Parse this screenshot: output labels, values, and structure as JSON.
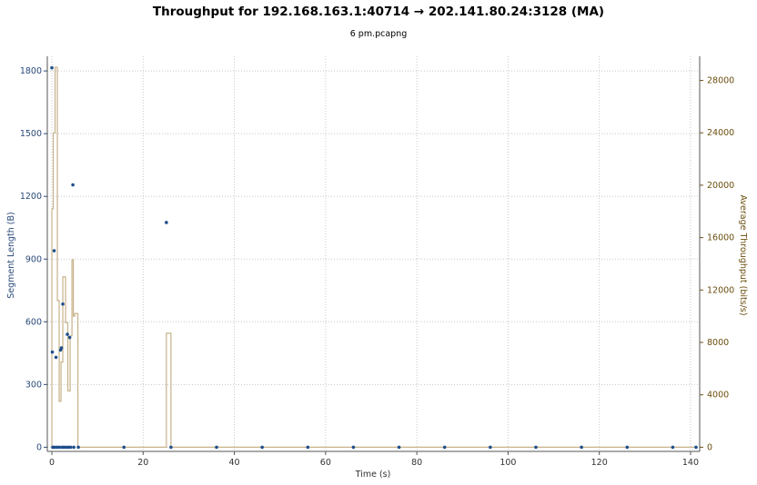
{
  "title": "Throughput for 192.168.163.1:40714 → 202.141.80.24:3128 (MA)",
  "subtitle": "6 pm.pcapng",
  "colors": {
    "segment_points": "#1f4e8c",
    "throughput_line": "#c8b28a",
    "grid": "#c8c8c8",
    "left_axis": "#2a4a7a",
    "right_axis": "#6b4e0e"
  },
  "chart_data": {
    "type": "scatter",
    "title": "Throughput for 192.168.163.1:40714 → 202.141.80.24:3128 (MA)",
    "subtitle": "6 pm.pcapng",
    "xlabel": "Time (s)",
    "ylabel_left": "Segment Length (B)",
    "ylabel_right": "Average Throughput (bits/s)",
    "xlim": [
      -1,
      142
    ],
    "ylim_left": [
      -20,
      1870
    ],
    "ylim_right": [
      -320,
      29840
    ],
    "x_ticks": [
      0,
      20,
      40,
      60,
      80,
      100,
      120,
      140
    ],
    "y_left_ticks": [
      0,
      300,
      600,
      900,
      1200,
      1500,
      1800
    ],
    "y_right_ticks": [
      0,
      4000,
      8000,
      12000,
      16000,
      20000,
      24000,
      28000
    ],
    "grid": true,
    "series": [
      {
        "name": "Segment Length",
        "axis": "left",
        "style": "points",
        "points": [
          [
            0.0,
            1815
          ],
          [
            0.1,
            455
          ],
          [
            0.2,
            0
          ],
          [
            0.5,
            940
          ],
          [
            0.6,
            0
          ],
          [
            0.9,
            430
          ],
          [
            1.1,
            0
          ],
          [
            1.6,
            0
          ],
          [
            1.9,
            465
          ],
          [
            2.1,
            475
          ],
          [
            2.2,
            0
          ],
          [
            2.4,
            685
          ],
          [
            2.6,
            0
          ],
          [
            3.1,
            0
          ],
          [
            3.4,
            540
          ],
          [
            3.6,
            0
          ],
          [
            3.9,
            525
          ],
          [
            4.1,
            0
          ],
          [
            4.6,
            1255
          ],
          [
            4.8,
            0
          ],
          [
            5.8,
            0
          ],
          [
            15.8,
            0
          ],
          [
            25.1,
            1075
          ],
          [
            26.1,
            0
          ],
          [
            36.1,
            0
          ],
          [
            46.1,
            0
          ],
          [
            56.1,
            0
          ],
          [
            66.1,
            0
          ],
          [
            76.1,
            0
          ],
          [
            86.1,
            0
          ],
          [
            96.1,
            0
          ],
          [
            106.1,
            0
          ],
          [
            116.1,
            0
          ],
          [
            126.1,
            0
          ],
          [
            136.1,
            0
          ],
          [
            141.2,
            0
          ]
        ]
      },
      {
        "name": "Average Throughput",
        "axis": "right",
        "style": "step",
        "points": [
          [
            0.0,
            0
          ],
          [
            0.0,
            18200
          ],
          [
            0.3,
            18200
          ],
          [
            0.3,
            24000
          ],
          [
            0.7,
            24000
          ],
          [
            0.7,
            29000
          ],
          [
            1.2,
            29000
          ],
          [
            1.2,
            11200
          ],
          [
            1.6,
            11200
          ],
          [
            1.6,
            3500
          ],
          [
            2.0,
            3500
          ],
          [
            2.0,
            6500
          ],
          [
            2.4,
            6500
          ],
          [
            2.4,
            13000
          ],
          [
            3.0,
            13000
          ],
          [
            3.0,
            9500
          ],
          [
            3.5,
            9500
          ],
          [
            3.5,
            4300
          ],
          [
            4.0,
            4300
          ],
          [
            4.0,
            8500
          ],
          [
            4.4,
            8500
          ],
          [
            4.4,
            14300
          ],
          [
            4.7,
            14300
          ],
          [
            4.7,
            10000
          ],
          [
            5.0,
            10000
          ],
          [
            5.0,
            10200
          ],
          [
            5.7,
            10200
          ],
          [
            5.7,
            0
          ],
          [
            25.1,
            0
          ],
          [
            25.1,
            8700
          ],
          [
            26.1,
            8700
          ],
          [
            26.1,
            0
          ],
          [
            141.2,
            0
          ]
        ]
      }
    ]
  }
}
